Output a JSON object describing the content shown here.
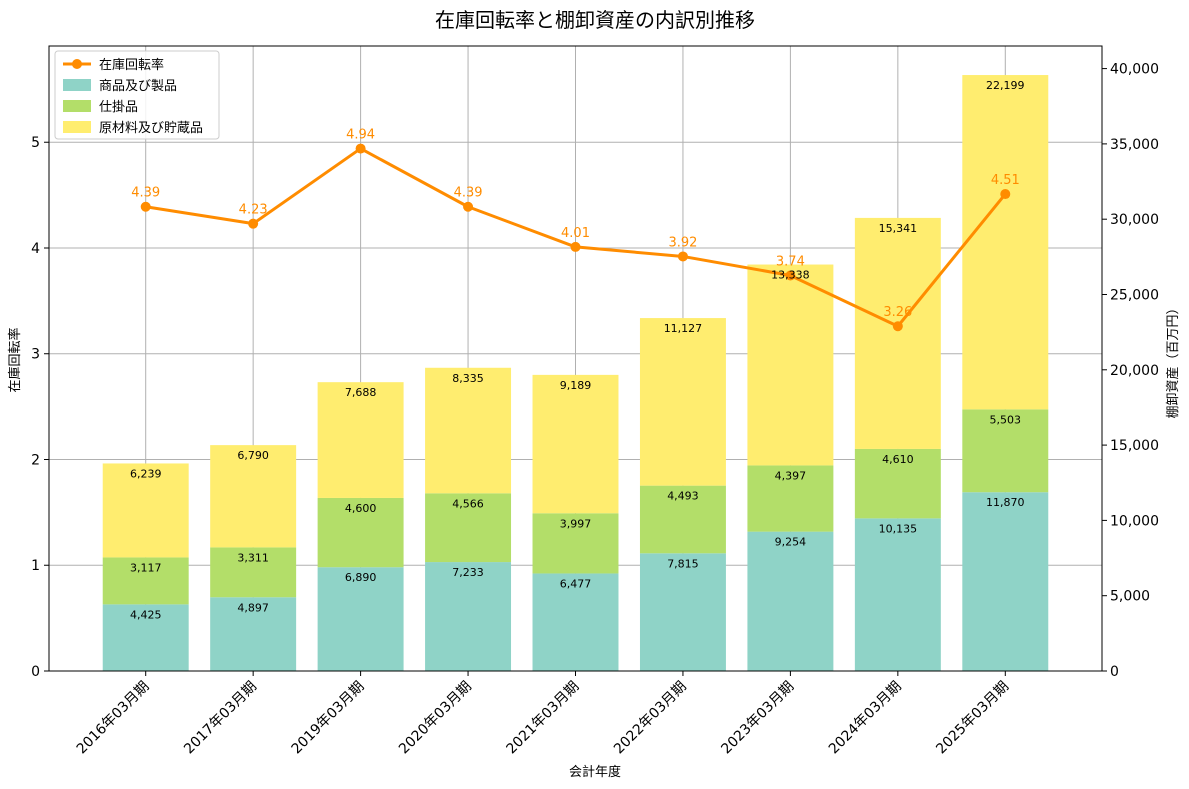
{
  "chart_data": {
    "type": "bar",
    "stacked": true,
    "title": "在庫回転率と棚卸資産の内訳別推移",
    "xlabel": "会計年度",
    "ylabel_left": "在庫回転率",
    "ylabel_right": "棚卸資産（百万円）",
    "categories": [
      "2016年03月期",
      "2017年03月期",
      "2019年03月期",
      "2020年03月期",
      "2021年03月期",
      "2022年03月期",
      "2023年03月期",
      "2024年03月期",
      "2025年03月期"
    ],
    "bar_series": [
      {
        "name": "商品及び製品",
        "color": "#8fd3c7",
        "values": [
          4425,
          4897,
          6890,
          7233,
          6477,
          7815,
          9254,
          10135,
          11870
        ],
        "labels": [
          "4,425",
          "4,897",
          "6,890",
          "7,233",
          "6,477",
          "7,815",
          "9,254",
          "10,135",
          "11,870"
        ]
      },
      {
        "name": "仕掛品",
        "color": "#b3de69",
        "values": [
          3117,
          3311,
          4600,
          4566,
          3997,
          4493,
          4397,
          4610,
          5503
        ],
        "labels": [
          "3,117",
          "3,311",
          "4,600",
          "4,566",
          "3,997",
          "4,493",
          "4,397",
          "4,610",
          "5,503"
        ]
      },
      {
        "name": "原材料及び貯蔵品",
        "color": "#ffed6f",
        "values": [
          6239,
          6790,
          7688,
          8335,
          9189,
          11127,
          13338,
          15341,
          22199
        ],
        "labels": [
          "6,239",
          "6,790",
          "7,688",
          "8,335",
          "9,189",
          "11,127",
          "13,338",
          "15,341",
          "22,199"
        ]
      }
    ],
    "line_series": {
      "name": "在庫回転率",
      "color": "#ff8c00",
      "values": [
        4.39,
        4.23,
        4.94,
        4.39,
        4.01,
        3.92,
        3.74,
        3.26,
        4.51
      ],
      "labels": [
        "4.39",
        "4.23",
        "4.94",
        "4.39",
        "4.01",
        "3.92",
        "3.74",
        "3.26",
        "4.51"
      ]
    },
    "ylim_left": [
      0,
      5.91
    ],
    "ylim_right": [
      0,
      41500
    ],
    "yticks_left": [
      0,
      1,
      2,
      3,
      4,
      5
    ],
    "yticks_right": [
      0,
      5000,
      10000,
      15000,
      20000,
      25000,
      30000,
      35000,
      40000
    ],
    "yticks_right_labels": [
      "0",
      "5,000",
      "10,000",
      "15,000",
      "20,000",
      "25,000",
      "30,000",
      "35,000",
      "40,000"
    ],
    "grid": true,
    "legend": "top-left"
  }
}
